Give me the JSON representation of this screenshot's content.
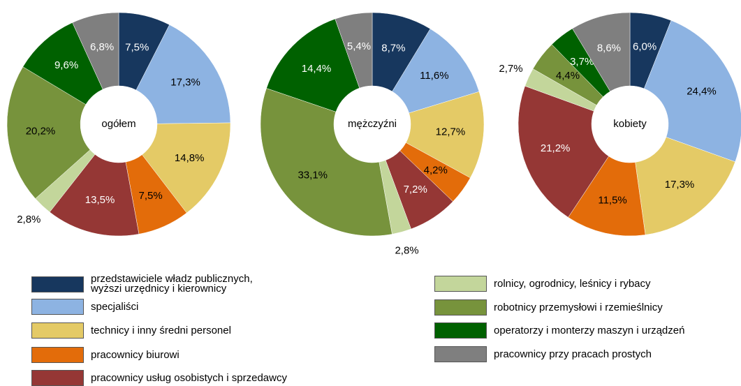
{
  "legend": {
    "categories": [
      "przedstawiciele władz publicznych,\nwyższi urzędnicy i kierownicy",
      "specjaliści",
      "technicy i inny średni personel",
      "pracownicy biurowi",
      "pracownicy usług osobistych i sprzedawcy",
      "rolnicy, ogrodnicy, leśnicy i rybacy",
      "robotnicy przemysłowi i rzemieślnicy",
      "operatorzy i monterzy maszyn i urządzeń",
      "pracownicy przy pracach prostych"
    ],
    "colors": [
      "#17375e",
      "#8db3e2",
      "#e4ca66",
      "#e36c0a",
      "#953735",
      "#c3d69b",
      "#77933c",
      "#006100",
      "#7f7f7f"
    ],
    "label_colors": [
      "#ffffff",
      "#000000",
      "#000000",
      "#000000",
      "#ffffff",
      "#000000",
      "#000000",
      "#ffffff",
      "#ffffff"
    ]
  },
  "chart_data": [
    {
      "type": "donut",
      "center_label": "ogółem",
      "values": [
        7.5,
        17.3,
        14.8,
        7.5,
        13.5,
        2.8,
        20.2,
        9.6,
        6.8
      ],
      "value_labels": [
        "7,5%",
        "17,3%",
        "14,8%",
        "7,5%",
        "13,5%",
        "2,8%",
        "20,2%",
        "9,6%",
        "6,8%"
      ]
    },
    {
      "type": "donut",
      "center_label": "mężczyźni",
      "values": [
        8.7,
        11.6,
        12.7,
        4.2,
        7.2,
        2.8,
        33.1,
        14.4,
        5.4
      ],
      "value_labels": [
        "8,7%",
        "11,6%",
        "12,7%",
        "4,2%",
        "7,2%",
        "2,8%",
        "33,1%",
        "14,4%",
        "5,4%"
      ]
    },
    {
      "type": "donut",
      "center_label": "kobiety",
      "values": [
        6.0,
        24.4,
        17.3,
        11.5,
        21.2,
        2.7,
        4.4,
        3.7,
        8.6
      ],
      "value_labels": [
        "6,0%",
        "24,4%",
        "17,3%",
        "11,5%",
        "21,2%",
        "2,7%",
        "4,4%",
        "3,7%",
        "8,6%"
      ]
    }
  ]
}
